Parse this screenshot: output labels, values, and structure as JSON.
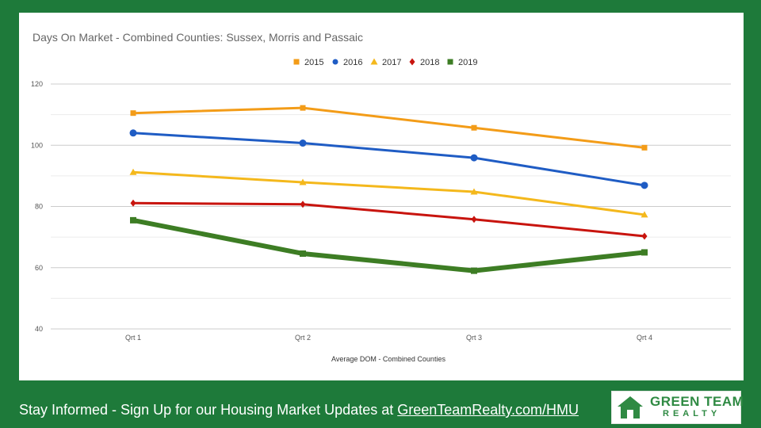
{
  "colors": {
    "background": "#1e7a3a",
    "panel": "#ffffff",
    "footer_text": "#ffffff",
    "logo_green": "#2f8a43"
  },
  "chart_data": {
    "type": "line",
    "title": "Days On Market - Combined Counties: Sussex, Morris and Passaic",
    "xlabel": "Average DOM - Combined Counties",
    "ylabel": "",
    "categories": [
      "Qrt 1",
      "Qrt 2",
      "Qrt 3",
      "Qrt 4"
    ],
    "ylim": [
      40,
      120
    ],
    "yticks": [
      40,
      60,
      80,
      100,
      120
    ],
    "grid": true,
    "legend_position": "top-center",
    "series": [
      {
        "name": "2015",
        "values": [
          110.5,
          112.2,
          105.7,
          99.2
        ],
        "color": "#f39c18",
        "marker": "square",
        "width": 3
      },
      {
        "name": "2016",
        "values": [
          104.0,
          100.7,
          95.9,
          86.9
        ],
        "color": "#1f5cc4",
        "marker": "circle",
        "width": 3
      },
      {
        "name": "2017",
        "values": [
          91.2,
          87.9,
          84.8,
          77.3
        ],
        "color": "#f4b81c",
        "marker": "triangle",
        "width": 3
      },
      {
        "name": "2018",
        "values": [
          81.1,
          80.7,
          75.8,
          70.3
        ],
        "color": "#c8140e",
        "marker": "diamond",
        "width": 3
      },
      {
        "name": "2019",
        "values": [
          75.5,
          64.6,
          59.0,
          65.0
        ],
        "color": "#3d7d24",
        "marker": "square",
        "width": 6
      }
    ]
  },
  "footer": {
    "text": "Stay Informed - Sign Up for our Housing Market Updates at ",
    "link": "GreenTeamRealty.com/HMU"
  },
  "logo": {
    "name": "GREEN TEAM",
    "sub": "REALTY"
  }
}
